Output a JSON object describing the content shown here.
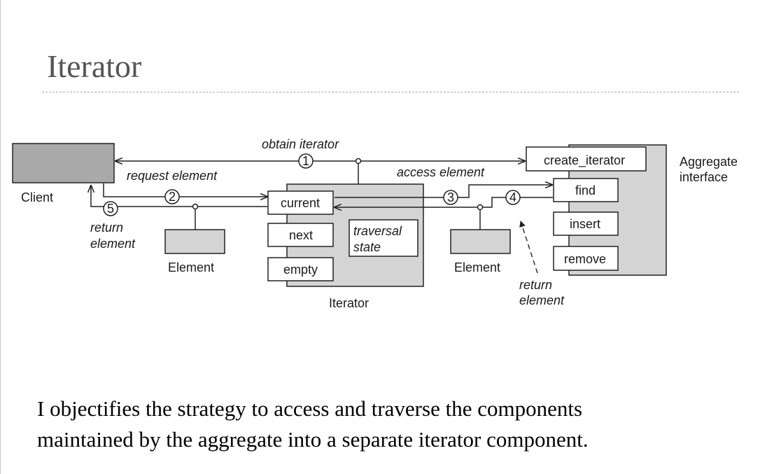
{
  "slide": {
    "title": "Iterator"
  },
  "diagram": {
    "client_label": "Client",
    "aggregate_label_line1": "Aggregate",
    "aggregate_label_line2": "interface",
    "iterator_label": "Iterator",
    "element_left_label": "Element",
    "element_right_label": "Element",
    "methods": {
      "create_iterator": "create_iterator",
      "find": "find",
      "insert": "insert",
      "remove": "remove"
    },
    "iterator_ops": {
      "current": "current",
      "next": "next",
      "empty": "empty"
    },
    "traversal_state_line1": "traversal",
    "traversal_state_line2": "state",
    "messages": {
      "obtain_iterator": "obtain iterator",
      "request_element": "request element",
      "access_element": "access element",
      "return_element_left_line1": "return",
      "return_element_left_line2": "element",
      "return_element_right_line1": "return",
      "return_element_right_line2": "element"
    },
    "steps": [
      "1",
      "2",
      "3",
      "4",
      "5"
    ]
  },
  "caption": {
    "line1": "I objectifies the strategy to access and traverse the components",
    "line2": "maintained by the aggregate into a separate iterator component."
  },
  "colors": {
    "box_dark": "#a9a9a9",
    "box_light": "#d4d4d4",
    "stroke": "#222222"
  }
}
